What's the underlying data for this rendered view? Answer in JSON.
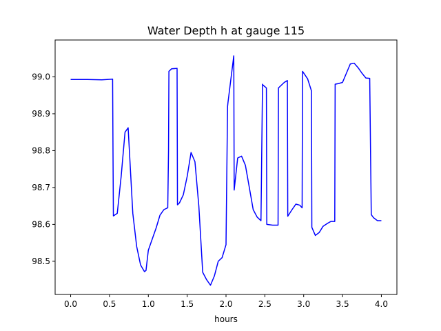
{
  "chart_data": {
    "type": "line",
    "title": "Water Depth h at gauge 115",
    "xlabel": "hours",
    "ylabel": "",
    "xlim": [
      -0.2,
      4.2
    ],
    "ylim": [
      98.41,
      99.1
    ],
    "xticks": [
      0.0,
      0.5,
      1.0,
      1.5,
      2.0,
      2.5,
      3.0,
      3.5,
      4.0
    ],
    "xtick_labels": [
      "0.0",
      "0.5",
      "1.0",
      "1.5",
      "2.0",
      "2.5",
      "3.0",
      "3.5",
      "4.0"
    ],
    "yticks": [
      98.5,
      98.6,
      98.7,
      98.8,
      98.9,
      99.0
    ],
    "ytick_labels": [
      "98.5",
      "98.6",
      "98.7",
      "98.8",
      "98.9",
      "99.0"
    ],
    "grid": false,
    "legend": "none",
    "series": [
      {
        "color": "#0000ff",
        "x": [
          0.0,
          0.2,
          0.4,
          0.54,
          0.545,
          0.55,
          0.6,
          0.65,
          0.7,
          0.74,
          0.8,
          0.85,
          0.9,
          0.95,
          0.97,
          1.0,
          1.05,
          1.1,
          1.15,
          1.2,
          1.25,
          1.26,
          1.265,
          1.3,
          1.37,
          1.375,
          1.4,
          1.45,
          1.5,
          1.55,
          1.6,
          1.65,
          1.7,
          1.75,
          1.8,
          1.85,
          1.9,
          1.95,
          2.0,
          2.02,
          2.025,
          2.1,
          2.105,
          2.15,
          2.2,
          2.25,
          2.3,
          2.35,
          2.4,
          2.45,
          2.47,
          2.475,
          2.52,
          2.525,
          2.6,
          2.67,
          2.675,
          2.75,
          2.79,
          2.795,
          2.85,
          2.9,
          2.95,
          2.98,
          2.985,
          3.05,
          3.1,
          3.105,
          3.15,
          3.2,
          3.25,
          3.3,
          3.35,
          3.4,
          3.405,
          3.45,
          3.5,
          3.55,
          3.6,
          3.65,
          3.7,
          3.75,
          3.8,
          3.85,
          3.87,
          3.875,
          3.9,
          3.95,
          4.0
        ],
        "y": [
          98.993,
          98.993,
          98.992,
          98.994,
          98.8,
          98.623,
          98.63,
          98.73,
          98.85,
          98.862,
          98.63,
          98.54,
          98.49,
          98.472,
          98.475,
          98.53,
          98.56,
          98.59,
          98.625,
          98.64,
          98.645,
          98.8,
          99.015,
          99.022,
          99.023,
          98.653,
          98.658,
          98.68,
          98.73,
          98.795,
          98.77,
          98.65,
          98.47,
          98.45,
          98.435,
          98.46,
          98.5,
          98.51,
          98.545,
          98.92,
          98.93,
          99.057,
          98.693,
          98.78,
          98.785,
          98.76,
          98.7,
          98.64,
          98.62,
          98.61,
          98.98,
          98.978,
          98.97,
          98.6,
          98.598,
          98.598,
          98.97,
          98.985,
          98.99,
          98.622,
          98.64,
          98.655,
          98.652,
          98.645,
          99.015,
          98.995,
          98.962,
          98.592,
          98.57,
          98.578,
          98.595,
          98.602,
          98.608,
          98.608,
          98.98,
          98.982,
          98.985,
          99.01,
          99.035,
          99.037,
          99.025,
          99.01,
          98.997,
          98.996,
          98.627,
          98.625,
          98.618,
          98.61,
          98.61
        ]
      }
    ]
  }
}
